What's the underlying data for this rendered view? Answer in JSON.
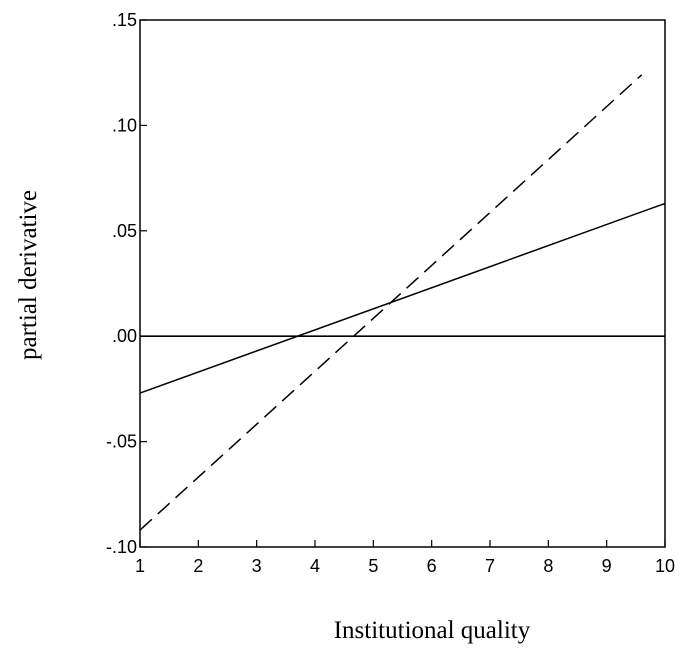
{
  "chart_data": {
    "type": "line",
    "title": "",
    "xlabel": "Institutional quality",
    "ylabel": "partial derivative",
    "xlim": [
      1,
      10
    ],
    "ylim": [
      -0.1,
      0.15
    ],
    "x_ticks": [
      1,
      2,
      3,
      4,
      5,
      6,
      7,
      8,
      9,
      10
    ],
    "x_tick_labels": [
      "1",
      "2",
      "3",
      "4",
      "5",
      "6",
      "7",
      "8",
      "9",
      "10"
    ],
    "y_ticks": [
      0.15,
      0.1,
      0.05,
      0.0,
      -0.05,
      -0.1
    ],
    "y_tick_labels": [
      ".15",
      ".10",
      ".05",
      ".00",
      "-.05",
      "-.10"
    ],
    "grid": false,
    "legend": "none",
    "series": [
      {
        "style": "solid",
        "color": "#000000",
        "x": [
          1,
          10
        ],
        "y": [
          -0.027,
          0.063
        ]
      },
      {
        "style": "dashed",
        "color": "#000000",
        "x": [
          1,
          9.6
        ],
        "y": [
          -0.092,
          0.124
        ]
      }
    ],
    "reference_line": {
      "y": 0.0,
      "style": "solid",
      "color": "#000000"
    }
  }
}
